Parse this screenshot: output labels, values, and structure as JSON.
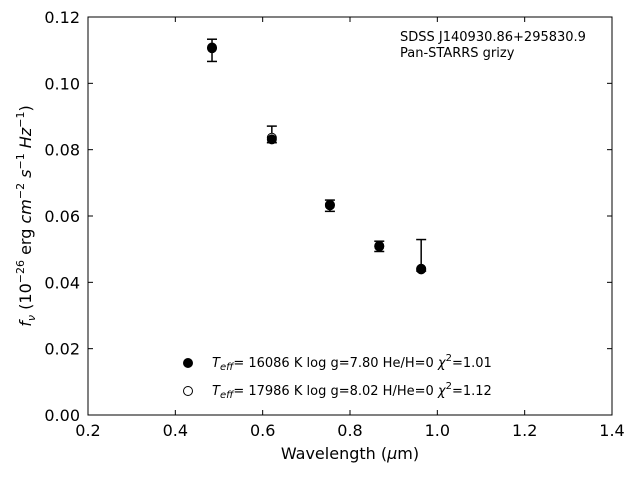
{
  "chart_data": {
    "type": "scatter",
    "annotation": {
      "line1": "SDSS J140930.86+295830.9",
      "line2": "Pan-STARRS grizy"
    },
    "xlabel": {
      "main": "Wavelength (",
      "mu": "μ",
      "unit": "m)"
    },
    "ylabel": {
      "f": "f",
      "nu": "ν",
      "open": " (10",
      "exp1": "−26",
      "erg": " erg ",
      "cm": "cm",
      "exp2": "−2",
      "s": " s",
      "exp3": "−1",
      "hz": " Hz",
      "exp4": "−1",
      "close": ")"
    },
    "xlim": [
      0.2,
      1.4
    ],
    "ylim": [
      0.0,
      0.12
    ],
    "x_ticks": [
      "0.2",
      "0.4",
      "0.6",
      "0.8",
      "1.0",
      "1.2",
      "1.4"
    ],
    "y_ticks": [
      "0.00",
      "0.02",
      "0.04",
      "0.06",
      "0.08",
      "0.10",
      "0.12"
    ],
    "grid": false,
    "legend_position": "lower-center",
    "observed": [
      {
        "x": 0.484,
        "y": 0.1108,
        "err_low": 0.1066,
        "err_high": 0.1133
      },
      {
        "x": 0.621,
        "y": 0.0837,
        "err_low": 0.0821,
        "err_high": 0.0871
      },
      {
        "x": 0.754,
        "y": 0.0636,
        "err_low": 0.0614,
        "err_high": 0.0648
      },
      {
        "x": 0.867,
        "y": 0.0512,
        "err_low": 0.0493,
        "err_high": 0.0524
      },
      {
        "x": 0.963,
        "y": 0.044,
        "err_low": 0.0434,
        "err_high": 0.0529
      }
    ],
    "model_filled": [
      {
        "x": 0.484,
        "y": 0.1106
      },
      {
        "x": 0.621,
        "y": 0.0831
      },
      {
        "x": 0.754,
        "y": 0.0632
      },
      {
        "x": 0.867,
        "y": 0.0508
      },
      {
        "x": 0.963,
        "y": 0.0439
      }
    ],
    "model_open": [
      {
        "x": 0.484,
        "y": 0.1108
      },
      {
        "x": 0.621,
        "y": 0.0836
      },
      {
        "x": 0.754,
        "y": 0.0634
      },
      {
        "x": 0.867,
        "y": 0.051
      },
      {
        "x": 0.963,
        "y": 0.0441
      }
    ],
    "legend": [
      {
        "marker": "filled",
        "t_sym": "T",
        "t_sub": "eff",
        "text": "= 16086 K  log g=7.80  He/H=0  ",
        "chi_sym": "χ",
        "chi_sup": "2",
        "chi_val": "=1.01"
      },
      {
        "marker": "open",
        "t_sym": "T",
        "t_sub": "eff",
        "text": "= 17986 K  log g=8.02  H/He=0  ",
        "chi_sym": "χ",
        "chi_sup": "2",
        "chi_val": "=1.12"
      }
    ]
  }
}
